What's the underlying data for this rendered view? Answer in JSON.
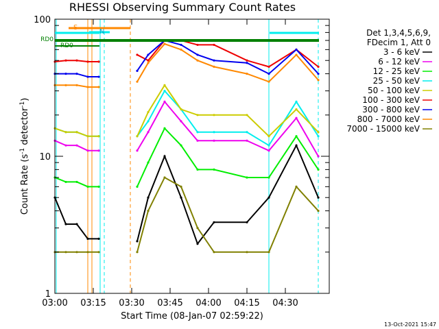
{
  "chart_data": {
    "type": "line",
    "title": "RHESSI Observing Summary Count Rates",
    "xlabel": "Start Time (08-Jan-07 02:59:22)",
    "ylabel_main": "Count Rate (s",
    "ylabel_exp1": "-1",
    "ylabel_mid": " detector",
    "ylabel_exp2": "-1",
    "ylabel_end": ")",
    "yscale": "log",
    "ylim": [
      1,
      100
    ],
    "xlim": [
      0,
      100
    ],
    "x_tick_labels": [
      "03:00",
      "03:15",
      "03:30",
      "03:45",
      "04:00",
      "04:15",
      "04:30"
    ],
    "y_tick_labels": [
      "1",
      "10",
      "100"
    ],
    "legend_header": [
      "Det 1,3,4,5,6,9,",
      "FDecim 1, Att 0"
    ],
    "legend_position": "right",
    "timestamp": "13-Oct-2021 15:47",
    "flags": {
      "s_label": "S",
      "n_label": "N",
      "rd_label": "RD0",
      "rd_label2": "RD0"
    },
    "series": [
      {
        "name": "3 - 6 keV",
        "color": "#000000",
        "values": [
          5,
          3.2,
          3.2,
          2.5,
          2.5,
          2.4,
          5,
          10,
          5,
          2.3,
          3.3,
          3.3,
          5,
          12,
          5
        ]
      },
      {
        "name": "6 - 12 keV",
        "color": "#ee00ee",
        "values": [
          13,
          12,
          12,
          11,
          11,
          11,
          15,
          25,
          18,
          13,
          13,
          13,
          11,
          19,
          10
        ]
      },
      {
        "name": "12 - 25 keV",
        "color": "#00ee00",
        "values": [
          7,
          6.5,
          6.5,
          6,
          6,
          6,
          9,
          16,
          12,
          8,
          8,
          7,
          7,
          14,
          8
        ]
      },
      {
        "name": "25 - 50 keV",
        "color": "#00eeee",
        "values": [
          16,
          15,
          15,
          14,
          14,
          14,
          18,
          30,
          22,
          15,
          15,
          15,
          12,
          25,
          14
        ]
      },
      {
        "name": "50 - 100 keV",
        "color": "#cccc00",
        "values": [
          16,
          15,
          15,
          14,
          14,
          14,
          21,
          33,
          22,
          20,
          20,
          20,
          14,
          22,
          15
        ]
      },
      {
        "name": "100 - 300 keV",
        "color": "#ee0000",
        "values": [
          49,
          50,
          50,
          49,
          49,
          55,
          50,
          70,
          70,
          65,
          65,
          50,
          45,
          60,
          45
        ]
      },
      {
        "name": "300 - 800 keV",
        "color": "#0000ee",
        "values": [
          40,
          40,
          40,
          38,
          38,
          42,
          55,
          70,
          65,
          55,
          50,
          48,
          40,
          60,
          40
        ]
      },
      {
        "name": "800 - 7000 keV",
        "color": "#ff8800",
        "values": [
          33,
          33,
          33,
          32,
          32,
          35,
          48,
          66,
          60,
          50,
          45,
          40,
          35,
          55,
          36
        ]
      },
      {
        "name": "7000 - 15000 keV",
        "color": "#808000",
        "values": [
          2,
          2,
          2,
          2,
          2,
          2,
          4,
          7,
          6,
          3,
          2,
          2,
          2,
          6,
          4
        ]
      }
    ]
  }
}
